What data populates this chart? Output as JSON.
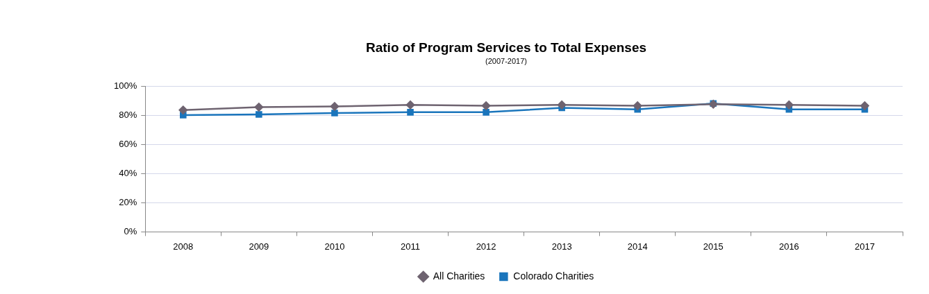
{
  "chart_data": {
    "type": "line",
    "title": "Ratio of Program Services to Total Expenses",
    "subtitle": "(2007-2017)",
    "categories": [
      "2008",
      "2009",
      "2010",
      "2011",
      "2012",
      "2013",
      "2014",
      "2015",
      "2016",
      "2017"
    ],
    "series": [
      {
        "name": "Colorado Charities",
        "color": "#1a75bc",
        "marker": "square",
        "values": [
          80,
          80.5,
          81.5,
          82,
          82,
          85,
          84,
          88,
          84,
          84
        ]
      },
      {
        "name": "All Charities",
        "color": "#6e6370",
        "marker": "diamond",
        "values": [
          83.5,
          85.5,
          86,
          87,
          86.5,
          87,
          86.5,
          87.5,
          87,
          86.5
        ]
      }
    ],
    "ylim": [
      0,
      100
    ],
    "yticks": [
      {
        "value": 0,
        "label": "0%"
      },
      {
        "value": 20,
        "label": "20%"
      },
      {
        "value": 40,
        "label": "40%"
      },
      {
        "value": 60,
        "label": "60%"
      },
      {
        "value": 80,
        "label": "80%"
      },
      {
        "value": 100,
        "label": "100%"
      }
    ],
    "grid": "y",
    "legend": "bottom",
    "line_style": "solid"
  }
}
